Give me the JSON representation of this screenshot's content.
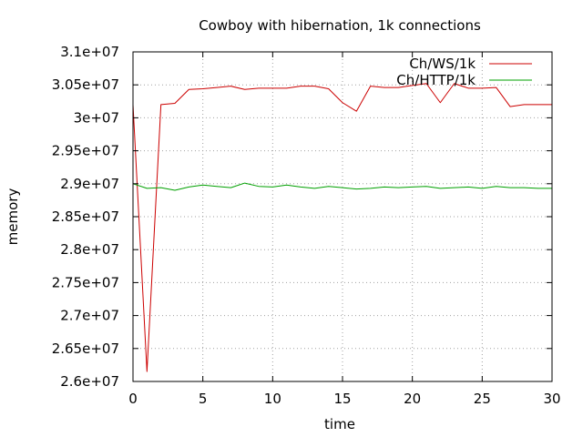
{
  "chart_data": {
    "type": "line",
    "title": "Cowboy with hibernation, 1k connections",
    "xlabel": "time",
    "ylabel": "memory",
    "xlim": [
      0,
      30
    ],
    "ylim": [
      26000000,
      31000000
    ],
    "xticks": [
      0,
      5,
      10,
      15,
      20,
      25,
      30
    ],
    "xtick_labels": [
      "0",
      "5",
      "10",
      "15",
      "20",
      "25",
      "30"
    ],
    "yticks": [
      26000000,
      26500000,
      27000000,
      27500000,
      28000000,
      28500000,
      29000000,
      29500000,
      30000000,
      30500000,
      31000000
    ],
    "ytick_labels": [
      "2.6e+07",
      "2.65e+07",
      "2.7e+07",
      "2.75e+07",
      "2.8e+07",
      "2.85e+07",
      "2.9e+07",
      "2.95e+07",
      "3e+07",
      "3.05e+07",
      "3.1e+07"
    ],
    "grid": true,
    "legend_position": "top-right",
    "series": [
      {
        "name": "Ch/WS/1k",
        "color": "#cc0000",
        "x": [
          0,
          1,
          2,
          3,
          4,
          5,
          6,
          7,
          8,
          9,
          10,
          11,
          12,
          13,
          14,
          15,
          16,
          17,
          18,
          19,
          20,
          21,
          22,
          23,
          24,
          25,
          26,
          27,
          28,
          29,
          30
        ],
        "y": [
          30200000,
          26150000,
          30200000,
          30220000,
          30430000,
          30440000,
          30460000,
          30480000,
          30430000,
          30450000,
          30450000,
          30450000,
          30480000,
          30480000,
          30440000,
          30230000,
          30100000,
          30480000,
          30460000,
          30460000,
          30490000,
          30520000,
          30230000,
          30520000,
          30450000,
          30450000,
          30460000,
          30170000,
          30200000,
          30200000,
          30200000
        ]
      },
      {
        "name": "Ch/HTTP/1k",
        "color": "#00a000",
        "x": [
          0,
          1,
          2,
          3,
          4,
          5,
          6,
          7,
          8,
          9,
          10,
          11,
          12,
          13,
          14,
          15,
          16,
          17,
          18,
          19,
          20,
          21,
          22,
          23,
          24,
          25,
          26,
          27,
          28,
          29,
          30
        ],
        "y": [
          29000000,
          28930000,
          28940000,
          28900000,
          28950000,
          28980000,
          28960000,
          28940000,
          29010000,
          28960000,
          28950000,
          28980000,
          28950000,
          28930000,
          28960000,
          28940000,
          28920000,
          28930000,
          28950000,
          28940000,
          28950000,
          28960000,
          28930000,
          28940000,
          28950000,
          28930000,
          28960000,
          28940000,
          28940000,
          28930000,
          28930000
        ]
      }
    ]
  }
}
